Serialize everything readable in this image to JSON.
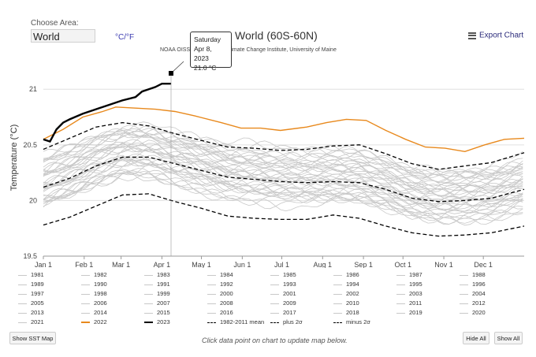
{
  "controls": {
    "area_label": "Choose Area:",
    "area_value": "World",
    "unit_toggle": "°C/°F",
    "export_label": "Export Chart",
    "show_map": "Show SST Map",
    "hide_all": "Hide All",
    "show_all": "Show All",
    "hint": "Click data point on chart to update map below."
  },
  "tooltip": {
    "day": "Saturday",
    "date": "Apr 8, 2023",
    "value": "21.0 °C"
  },
  "chart_data": {
    "type": "line",
    "title": "World (60S-60N)",
    "subtitle": "NOAA OISST                 mate Office, Climate Change Institute, University of Maine",
    "ylabel": "Temperature (°C)",
    "xlabel": "",
    "ylim": [
      19.5,
      21.2
    ],
    "yticks": [
      "21",
      "20.5",
      "20",
      "19.5"
    ],
    "ytick_values": [
      21,
      20.5,
      20,
      19.5
    ],
    "xticks": [
      "Jan 1",
      "Feb 1",
      "Mar 1",
      "Apr 1",
      "May 1",
      "Jun 1",
      "Jul 1",
      "Aug 1",
      "Sep 1",
      "Oct 1",
      "Nov 1",
      "Dec 1"
    ],
    "xtick_days": [
      0,
      31,
      59,
      90,
      120,
      151,
      181,
      212,
      243,
      273,
      304,
      334
    ],
    "x_domain": [
      0,
      365
    ],
    "grid": "horizontal",
    "legend_position": "bottom",
    "colors": {
      "gray": "#c8c8c8",
      "y2022": "#e8891d",
      "y2023": "#000000",
      "ref": "#000000"
    },
    "series": [
      {
        "name": "1982-2011 mean",
        "style": "dashed",
        "x": [
          0,
          20,
          40,
          60,
          80,
          100,
          120,
          140,
          160,
          180,
          200,
          220,
          240,
          260,
          280,
          300,
          320,
          340,
          365
        ],
        "values": [
          20.12,
          20.2,
          20.31,
          20.39,
          20.39,
          20.33,
          20.27,
          20.21,
          20.19,
          20.17,
          20.16,
          20.17,
          20.16,
          20.1,
          20.02,
          19.99,
          20.0,
          20.02,
          20.1
        ]
      },
      {
        "name": "plus 2σ",
        "style": "dashed",
        "x": [
          0,
          20,
          40,
          60,
          80,
          100,
          120,
          140,
          160,
          180,
          200,
          220,
          240,
          260,
          280,
          300,
          320,
          340,
          365
        ],
        "values": [
          20.46,
          20.56,
          20.66,
          20.7,
          20.67,
          20.6,
          20.54,
          20.48,
          20.47,
          20.45,
          20.46,
          20.49,
          20.5,
          20.42,
          20.33,
          20.28,
          20.31,
          20.34,
          20.43
        ]
      },
      {
        "name": "minus 2σ",
        "style": "dashed",
        "x": [
          0,
          20,
          40,
          60,
          80,
          100,
          120,
          140,
          160,
          180,
          200,
          220,
          240,
          260,
          280,
          300,
          320,
          340,
          365
        ],
        "values": [
          19.78,
          19.85,
          19.95,
          20.05,
          20.06,
          19.99,
          19.93,
          19.86,
          19.84,
          19.83,
          19.83,
          19.87,
          19.84,
          19.77,
          19.71,
          19.68,
          19.69,
          19.71,
          19.77
        ]
      },
      {
        "name": "2022",
        "style": "solid",
        "x": [
          0,
          15,
          30,
          45,
          55,
          70,
          85,
          100,
          115,
          135,
          150,
          165,
          180,
          200,
          215,
          230,
          245,
          260,
          275,
          290,
          305,
          320,
          335,
          350,
          365
        ],
        "values": [
          20.55,
          20.64,
          20.75,
          20.8,
          20.84,
          20.83,
          20.82,
          20.8,
          20.76,
          20.7,
          20.65,
          20.65,
          20.63,
          20.66,
          20.7,
          20.73,
          20.72,
          20.63,
          20.55,
          20.48,
          20.47,
          20.44,
          20.5,
          20.55,
          20.56
        ]
      },
      {
        "name": "2023",
        "style": "solid",
        "x": [
          0,
          5,
          10,
          15,
          20,
          30,
          40,
          50,
          60,
          70,
          75,
          80,
          85,
          90,
          97
        ],
        "values": [
          20.55,
          20.53,
          20.64,
          20.7,
          20.73,
          20.78,
          20.82,
          20.86,
          20.9,
          20.93,
          20.98,
          21.0,
          21.02,
          21.05,
          21.05
        ]
      }
    ],
    "gray_years": [
      "1981",
      "1982",
      "1983",
      "1984",
      "1985",
      "1986",
      "1987",
      "1988",
      "1989",
      "1990",
      "1991",
      "1992",
      "1993",
      "1994",
      "1995",
      "1996",
      "1997",
      "1998",
      "1999",
      "2000",
      "2001",
      "2002",
      "2003",
      "2004",
      "2005",
      "2006",
      "2007",
      "2008",
      "2009",
      "2010",
      "2011",
      "2012",
      "2013",
      "2014",
      "2015",
      "2016",
      "2017",
      "2018",
      "2019",
      "2020",
      "2021"
    ],
    "legend": [
      "1981",
      "1982",
      "1983",
      "1984",
      "1985",
      "1986",
      "1987",
      "1988",
      "1989",
      "1990",
      "1991",
      "1992",
      "1993",
      "1994",
      "1995",
      "1996",
      "1997",
      "1998",
      "1999",
      "2000",
      "2001",
      "2002",
      "2003",
      "2004",
      "2005",
      "2006",
      "2007",
      "2008",
      "2009",
      "2010",
      "2011",
      "2012",
      "2013",
      "2014",
      "2015",
      "2016",
      "2017",
      "2018",
      "2019",
      "2020",
      "2021",
      "2022",
      "2023",
      "1982-2011 mean",
      "plus 2σ",
      "minus 2σ"
    ]
  }
}
